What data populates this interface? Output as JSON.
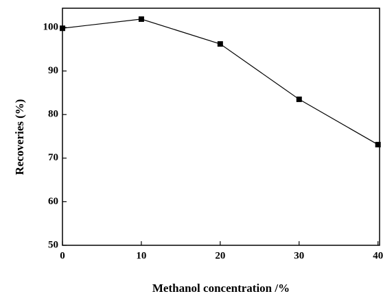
{
  "chart_data": {
    "type": "line",
    "x_label": "Methanol concentration /%",
    "y_label": "Recoveries (%)",
    "x": [
      0,
      10,
      20,
      30,
      40
    ],
    "series": [
      {
        "color": "#000000",
        "values": [
          99.8,
          101.9,
          96.2,
          83.5,
          73.1
        ]
      }
    ],
    "xlim": [
      0,
      40.2
    ],
    "xticks": [
      0,
      10,
      20,
      30,
      40
    ],
    "ylim": [
      50,
      104.4
    ],
    "yticks": [
      50,
      60,
      70,
      80,
      90,
      100
    ]
  }
}
